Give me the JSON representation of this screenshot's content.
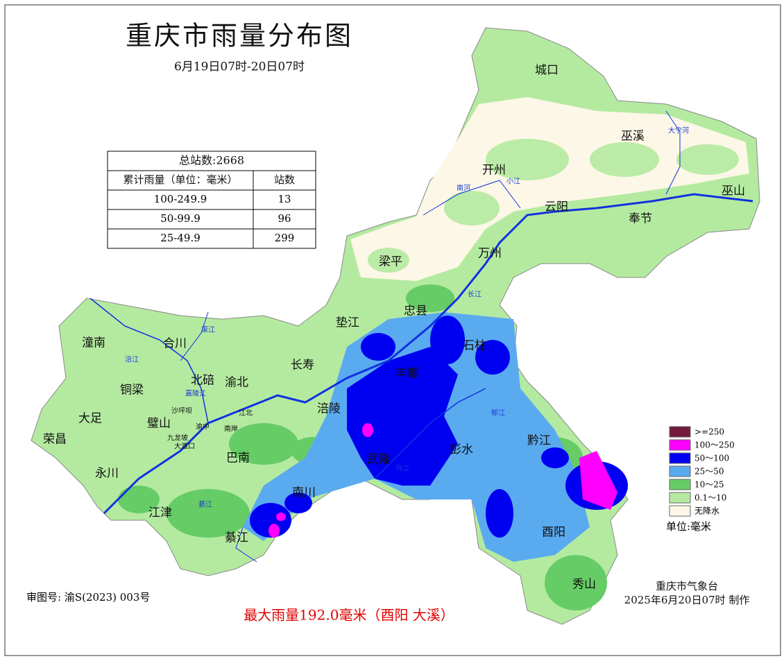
{
  "header": {
    "title": "重庆市雨量分布图",
    "subtitle": "6月19日07时-20日07时"
  },
  "table": {
    "title": "总站数:2668",
    "columns": [
      "累计雨量（单位：毫米）",
      "站数"
    ],
    "rows": [
      [
        "100-249.9",
        13
      ],
      [
        "50-99.9",
        96
      ],
      [
        "25-49.9",
        299
      ]
    ]
  },
  "legend": {
    "items": [
      {
        "label": ">=250",
        "color": "#731a3c"
      },
      {
        "label": "100～250",
        "color": "#ff00ff"
      },
      {
        "label": "50～100",
        "color": "#0000f0"
      },
      {
        "label": "25～50",
        "color": "#5aaaf0"
      },
      {
        "label": "10～25",
        "color": "#66cc66"
      },
      {
        "label": "0.1～10",
        "color": "#b4eaa0"
      },
      {
        "label": "无降水",
        "color": "#fcf7e6"
      }
    ],
    "unit": "单位:毫米"
  },
  "places": [
    "城口",
    "巫溪",
    "开州",
    "云阳",
    "奉节",
    "巫山",
    "梁平",
    "万州",
    "忠县",
    "石柱",
    "垫江",
    "丰都",
    "长寿",
    "涪陵",
    "武隆",
    "彭水",
    "黔江",
    "酉阳",
    "秀山",
    "南川",
    "綦江",
    "巴南",
    "江津",
    "永川",
    "荣昌",
    "大足",
    "铜梁",
    "璧山",
    "潼南",
    "合川",
    "北碚",
    "渝北",
    "沙坪坝",
    "九龙坡",
    "大渡口",
    "渝中",
    "江北",
    "南岸"
  ],
  "rivers": [
    "大宁河",
    "南河",
    "小江",
    "长江",
    "涪江",
    "嘉陵江",
    "渠江",
    "乌江",
    "綦江",
    "郁江"
  ],
  "footer": {
    "approval": "审图号: 渝S(2023) 003号",
    "max_rain": "最大雨量192.0毫米（酉阳 大溪）",
    "agency": "重庆市气象台",
    "made": "2025年6月20日07时 制作"
  }
}
